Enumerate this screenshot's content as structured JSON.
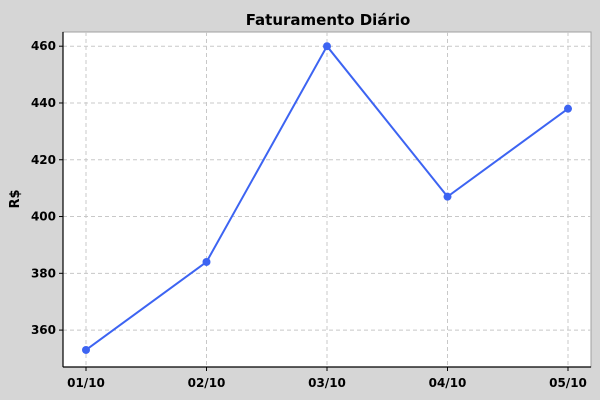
{
  "chart_data": {
    "type": "line",
    "title": "Faturamento Diário",
    "xlabel": "",
    "ylabel": "R$",
    "categories": [
      "01/10",
      "02/10",
      "03/10",
      "04/10",
      "05/10"
    ],
    "series": [
      {
        "values": [
          353,
          384,
          460,
          407,
          438
        ],
        "color": "#3d64f2"
      }
    ],
    "ylim": [
      347,
      465
    ],
    "yticks": [
      360,
      380,
      400,
      420,
      440,
      460
    ],
    "grid": true,
    "legend": "none"
  },
  "colors": {
    "background": "#d6d6d6",
    "plot_background": "#ffffff",
    "grid": "#c8c8c8",
    "axis": "#000000"
  }
}
